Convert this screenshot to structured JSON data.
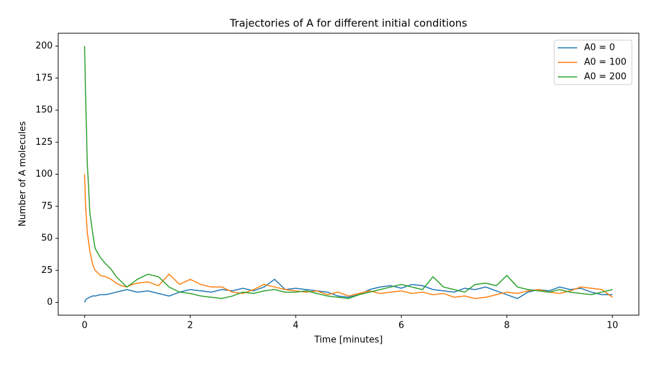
{
  "chart_data": {
    "type": "line",
    "title": "Trajectories of A for different initial conditions",
    "x_label": "Time [minutes]",
    "y_label": "Number of A molecules",
    "x": [
      0,
      0.02,
      0.05,
      0.1,
      0.15,
      0.2,
      0.3,
      0.4,
      0.5,
      0.6,
      0.7,
      0.8,
      0.9,
      1.0,
      1.2,
      1.4,
      1.6,
      1.8,
      2.0,
      2.2,
      2.4,
      2.6,
      2.8,
      3.0,
      3.2,
      3.4,
      3.6,
      3.8,
      4.0,
      4.2,
      4.4,
      4.6,
      4.8,
      5.0,
      5.2,
      5.4,
      5.6,
      5.8,
      6.0,
      6.2,
      6.4,
      6.6,
      6.8,
      7.0,
      7.2,
      7.4,
      7.6,
      7.8,
      8.0,
      8.2,
      8.4,
      8.6,
      8.8,
      9.0,
      9.2,
      9.4,
      9.6,
      9.8,
      10.0
    ],
    "series": [
      {
        "name": "A0 = 0",
        "color": "#1f77b4",
        "values": [
          0,
          2,
          3,
          4,
          5,
          5,
          6,
          6,
          7,
          8,
          9,
          10,
          9,
          8,
          9,
          7,
          5,
          8,
          10,
          9,
          8,
          10,
          9,
          11,
          9,
          12,
          18,
          10,
          11,
          10,
          9,
          8,
          5,
          4,
          6,
          10,
          12,
          13,
          11,
          14,
          13,
          10,
          9,
          8,
          11,
          10,
          12,
          9,
          6,
          3,
          8,
          10,
          9,
          12,
          10,
          11,
          8,
          6,
          6
        ]
      },
      {
        "name": "A0 = 100",
        "color": "#ff7f0e",
        "values": [
          100,
          75,
          55,
          40,
          30,
          25,
          21,
          20,
          18,
          15,
          13,
          12,
          14,
          15,
          16,
          13,
          22,
          14,
          18,
          14,
          12,
          12,
          8,
          7,
          10,
          14,
          12,
          10,
          9,
          8,
          9,
          6,
          8,
          5,
          7,
          9,
          7,
          8,
          9,
          7,
          8,
          6,
          7,
          4,
          5,
          3,
          4,
          6,
          8,
          7,
          9,
          10,
          8,
          7,
          9,
          12,
          11,
          10,
          4
        ]
      },
      {
        "name": "A0 = 200",
        "color": "#2ca02c",
        "values": [
          200,
          160,
          110,
          70,
          55,
          42,
          35,
          30,
          26,
          20,
          16,
          12,
          15,
          18,
          22,
          20,
          12,
          8,
          7,
          5,
          4,
          3,
          5,
          8,
          7,
          9,
          10,
          8,
          8,
          9,
          7,
          5,
          4,
          3,
          6,
          8,
          10,
          12,
          14,
          12,
          10,
          20,
          12,
          10,
          8,
          14,
          15,
          13,
          21,
          12,
          10,
          9,
          8,
          10,
          8,
          7,
          6,
          8,
          10
        ]
      }
    ],
    "xlim": [
      -0.5,
      10.5
    ],
    "ylim": [
      -10,
      210
    ],
    "xticks": [
      0,
      2,
      4,
      6,
      8,
      10
    ],
    "yticks": [
      0,
      25,
      50,
      75,
      100,
      125,
      150,
      175,
      200
    ],
    "legend": "upper right"
  }
}
